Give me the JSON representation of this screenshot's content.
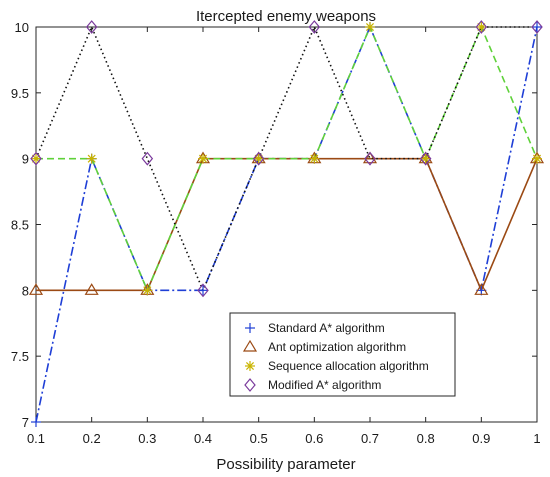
{
  "chart_data": {
    "type": "line",
    "title": "Itercepted enemy weapons",
    "xlabel": "Possibility parameter",
    "ylabel": "",
    "x": [
      0.1,
      0.2,
      0.3,
      0.4,
      0.5,
      0.6,
      0.7,
      0.8,
      0.9,
      1
    ],
    "x_tick_labels": [
      "0.1",
      "0.2",
      "0.3",
      "0.4",
      "0.5",
      "0.6",
      "0.7",
      "0.8",
      "0.9",
      "1"
    ],
    "y_tick_labels": [
      "7",
      "7.5",
      "8",
      "8.5",
      "9",
      "9.5",
      "10"
    ],
    "xlim": [
      0.1,
      1
    ],
    "ylim": [
      7,
      10
    ],
    "grid": false,
    "legend_position": "bottom-right",
    "series": [
      {
        "name": "Standard A* algorithm",
        "values": [
          7,
          9,
          8,
          8,
          9,
          9,
          10,
          9,
          8,
          10
        ],
        "color": "#1f3fd6",
        "marker": "plus",
        "line_style": "dashdot"
      },
      {
        "name": "Ant optimization algorithm",
        "values": [
          8,
          8,
          8,
          9,
          9,
          9,
          9,
          9,
          8,
          9
        ],
        "color": "#9b4a14",
        "marker": "triangle",
        "line_style": "solid"
      },
      {
        "name": "Sequence allocation algorithm",
        "values": [
          9,
          9,
          8,
          9,
          9,
          9,
          10,
          9,
          10,
          9
        ],
        "color": "#5fd13a",
        "marker_color": "#c9b400",
        "marker": "asterisk",
        "line_style": "dashed"
      },
      {
        "name": "Modified A* algorithm",
        "values": [
          9,
          10,
          9,
          8,
          9,
          10,
          9,
          9,
          10,
          10
        ],
        "color": "#111111",
        "marker_color": "#7a3a9c",
        "marker": "diamond",
        "line_style": "dotted"
      }
    ]
  }
}
